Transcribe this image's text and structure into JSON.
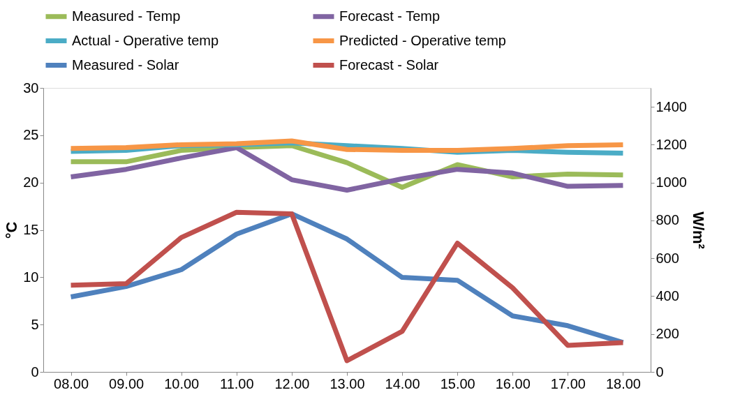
{
  "chart_data": {
    "type": "line",
    "ylabel": "°C",
    "y2label": "W/m²",
    "categories": [
      "08.00",
      "09.00",
      "10.00",
      "11.00",
      "12.00",
      "13.00",
      "14.00",
      "15.00",
      "16.00",
      "17.00",
      "18.00"
    ],
    "series": [
      {
        "name": "Measured - Temp",
        "color": "#9bbb59",
        "axis": "y",
        "values": [
          22.2,
          22.2,
          23.4,
          23.7,
          23.9,
          22.1,
          19.5,
          21.9,
          20.6,
          20.9,
          20.8
        ]
      },
      {
        "name": "Forecast - Temp",
        "color": "#8064a2",
        "axis": "y",
        "values": [
          20.6,
          21.4,
          22.6,
          23.7,
          20.3,
          19.2,
          20.4,
          21.4,
          21.0,
          19.6,
          19.7
        ]
      },
      {
        "name": "Actual - Operative temp",
        "color": "#4bacc6",
        "axis": "y",
        "values": [
          23.3,
          23.4,
          23.9,
          24.0,
          24.2,
          23.9,
          23.6,
          23.2,
          23.4,
          23.2,
          23.1
        ]
      },
      {
        "name": "Predicted - Operative temp",
        "color": "#f79646",
        "axis": "y",
        "values": [
          23.6,
          23.7,
          24.0,
          24.1,
          24.4,
          23.5,
          23.4,
          23.4,
          23.6,
          23.9,
          24.0
        ]
      },
      {
        "name": "Measured - Solar",
        "color": "#4f81bd",
        "axis": "y2",
        "values": [
          396,
          451,
          540,
          728,
          835,
          702,
          499,
          484,
          296,
          244,
          155
        ]
      },
      {
        "name": "Forecast - Solar",
        "color": "#c0504d",
        "axis": "y2",
        "values": [
          458,
          466,
          710,
          843,
          835,
          59,
          214,
          680,
          444,
          140,
          155
        ]
      }
    ],
    "ylim": [
      0,
      30
    ],
    "yticks": [
      0,
      5,
      10,
      15,
      20,
      25,
      30
    ],
    "y2lim": [
      0,
      1500
    ],
    "y2ticks": [
      0,
      200,
      400,
      600,
      800,
      1000,
      1200,
      1400
    ],
    "legend": "top",
    "grid": false,
    "marker": "none",
    "line_style": "solid"
  }
}
